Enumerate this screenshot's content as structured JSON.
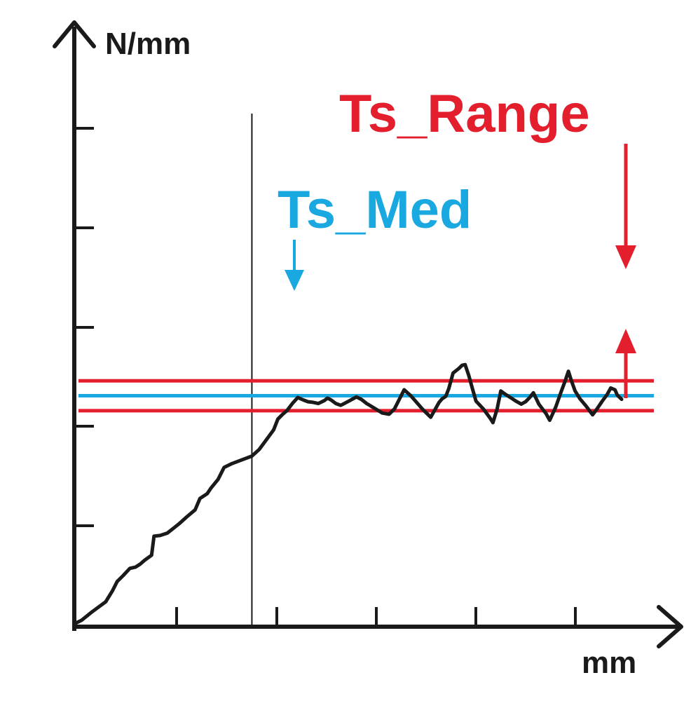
{
  "chart_data": {
    "type": "line",
    "ylabel": "N/mm",
    "xlabel": "mm",
    "grid": false,
    "colors": {
      "axis": "#1a1a1a",
      "curve": "#1a1a1a",
      "range": "#e31e2d",
      "median": "#1aa8e0"
    },
    "annotations": {
      "range_label": "Ts_Range",
      "median_label": "Ts_Med"
    },
    "series": [
      {
        "values": [
          [
            0.0,
            0.0
          ],
          [
            0.012,
            0.006
          ],
          [
            0.028,
            0.019
          ],
          [
            0.052,
            0.037
          ],
          [
            0.063,
            0.055
          ],
          [
            0.071,
            0.071
          ],
          [
            0.081,
            0.081
          ],
          [
            0.092,
            0.093
          ],
          [
            0.101,
            0.095
          ],
          [
            0.109,
            0.1
          ],
          [
            0.117,
            0.107
          ],
          [
            0.128,
            0.115
          ],
          [
            0.132,
            0.147
          ],
          [
            0.142,
            0.148
          ],
          [
            0.154,
            0.152
          ],
          [
            0.164,
            0.16
          ],
          [
            0.175,
            0.169
          ],
          [
            0.186,
            0.179
          ],
          [
            0.2,
            0.191
          ],
          [
            0.208,
            0.21
          ],
          [
            0.22,
            0.218
          ],
          [
            0.226,
            0.227
          ],
          [
            0.238,
            0.242
          ],
          [
            0.248,
            0.262
          ],
          [
            0.26,
            0.268
          ],
          [
            0.273,
            0.273
          ],
          [
            0.294,
            0.281
          ],
          [
            0.306,
            0.292
          ],
          [
            0.317,
            0.307
          ],
          [
            0.33,
            0.325
          ],
          [
            0.337,
            0.343
          ],
          [
            0.344,
            0.35
          ],
          [
            0.352,
            0.357
          ],
          [
            0.361,
            0.369
          ],
          [
            0.37,
            0.379
          ],
          [
            0.379,
            0.375
          ],
          [
            0.387,
            0.372
          ],
          [
            0.395,
            0.371
          ],
          [
            0.404,
            0.369
          ],
          [
            0.414,
            0.374
          ],
          [
            0.419,
            0.378
          ],
          [
            0.425,
            0.375
          ],
          [
            0.433,
            0.369
          ],
          [
            0.441,
            0.366
          ],
          [
            0.447,
            0.369
          ],
          [
            0.456,
            0.374
          ],
          [
            0.467,
            0.38
          ],
          [
            0.475,
            0.376
          ],
          [
            0.484,
            0.369
          ],
          [
            0.497,
            0.361
          ],
          [
            0.51,
            0.353
          ],
          [
            0.521,
            0.351
          ],
          [
            0.53,
            0.36
          ],
          [
            0.538,
            0.376
          ],
          [
            0.546,
            0.392
          ],
          [
            0.557,
            0.382
          ],
          [
            0.564,
            0.374
          ],
          [
            0.576,
            0.36
          ],
          [
            0.59,
            0.346
          ],
          [
            0.604,
            0.371
          ],
          [
            0.609,
            0.377
          ],
          [
            0.615,
            0.381
          ],
          [
            0.62,
            0.394
          ],
          [
            0.627,
            0.42
          ],
          [
            0.637,
            0.428
          ],
          [
            0.642,
            0.433
          ],
          [
            0.647,
            0.434
          ],
          [
            0.653,
            0.416
          ],
          [
            0.659,
            0.394
          ],
          [
            0.665,
            0.373
          ],
          [
            0.677,
            0.36
          ],
          [
            0.688,
            0.345
          ],
          [
            0.693,
            0.337
          ],
          [
            0.7,
            0.36
          ],
          [
            0.706,
            0.39
          ],
          [
            0.714,
            0.384
          ],
          [
            0.722,
            0.379
          ],
          [
            0.731,
            0.373
          ],
          [
            0.74,
            0.368
          ],
          [
            0.747,
            0.372
          ],
          [
            0.753,
            0.378
          ],
          [
            0.76,
            0.387
          ],
          [
            0.769,
            0.368
          ],
          [
            0.781,
            0.352
          ],
          [
            0.787,
            0.341
          ],
          [
            0.797,
            0.363
          ],
          [
            0.805,
            0.386
          ],
          [
            0.813,
            0.408
          ],
          [
            0.818,
            0.423
          ],
          [
            0.823,
            0.407
          ],
          [
            0.829,
            0.39
          ],
          [
            0.837,
            0.377
          ],
          [
            0.847,
            0.365
          ],
          [
            0.858,
            0.35
          ],
          [
            0.866,
            0.361
          ],
          [
            0.874,
            0.373
          ],
          [
            0.882,
            0.384
          ],
          [
            0.888,
            0.395
          ],
          [
            0.895,
            0.392
          ],
          [
            0.899,
            0.383
          ],
          [
            0.906,
            0.376
          ]
        ]
      }
    ],
    "hlines": {
      "range_upper": 0.407,
      "range_lower": 0.357,
      "median": 0.382
    },
    "vline_x": 0.294,
    "xlim": [
      0,
      1
    ],
    "ylim": [
      0,
      1
    ]
  }
}
